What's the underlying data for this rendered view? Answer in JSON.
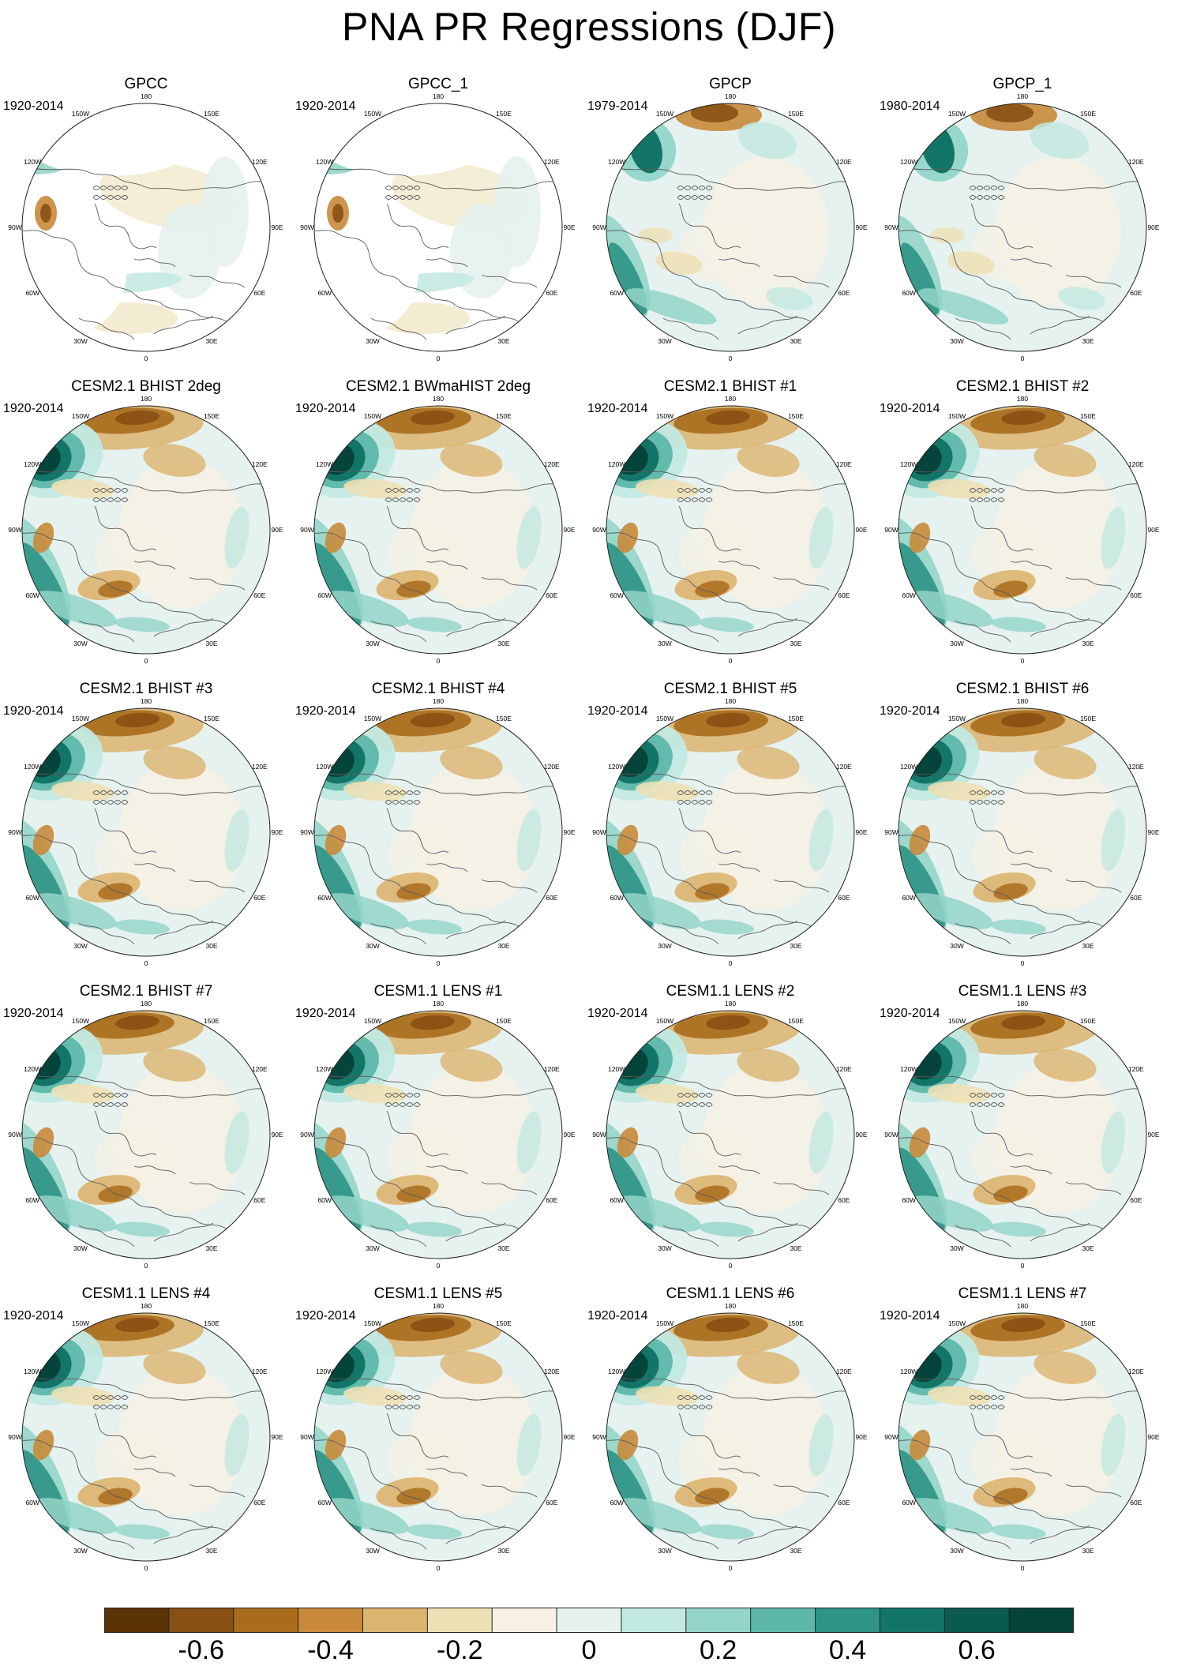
{
  "title": "PNA PR Regressions (DJF)",
  "map_labels": {
    "lon_labels": [
      "180",
      "150E",
      "120E",
      "90E",
      "60E",
      "30E",
      "0",
      "30W",
      "60W",
      "90W",
      "120W",
      "150W"
    ]
  },
  "panels": [
    {
      "title": "GPCC",
      "period": "1920-2014",
      "kind": "gpcc"
    },
    {
      "title": "GPCC_1",
      "period": "1920-2014",
      "kind": "gpcc"
    },
    {
      "title": "GPCP",
      "period": "1979-2014",
      "kind": "gpcp"
    },
    {
      "title": "GPCP_1",
      "period": "1980-2014",
      "kind": "gpcp"
    },
    {
      "title": "CESM2.1 BHIST 2deg",
      "period": "1920-2014",
      "kind": "model"
    },
    {
      "title": "CESM2.1 BWmaHIST 2deg",
      "period": "1920-2014",
      "kind": "model"
    },
    {
      "title": "CESM2.1 BHIST #1",
      "period": "1920-2014",
      "kind": "model"
    },
    {
      "title": "CESM2.1 BHIST #2",
      "period": "1920-2014",
      "kind": "model"
    },
    {
      "title": "CESM2.1 BHIST #3",
      "period": "1920-2014",
      "kind": "model"
    },
    {
      "title": "CESM2.1 BHIST #4",
      "period": "1920-2014",
      "kind": "model"
    },
    {
      "title": "CESM2.1 BHIST #5",
      "period": "1920-2014",
      "kind": "model"
    },
    {
      "title": "CESM2.1 BHIST #6",
      "period": "1920-2014",
      "kind": "model"
    },
    {
      "title": "CESM2.1 BHIST #7",
      "period": "1920-2014",
      "kind": "model"
    },
    {
      "title": "CESM1.1 LENS #1",
      "period": "1920-2014",
      "kind": "model"
    },
    {
      "title": "CESM1.1 LENS #2",
      "period": "1920-2014",
      "kind": "model"
    },
    {
      "title": "CESM1.1 LENS #3",
      "period": "1920-2014",
      "kind": "model"
    },
    {
      "title": "CESM1.1 LENS #4",
      "period": "1920-2014",
      "kind": "model"
    },
    {
      "title": "CESM1.1 LENS #5",
      "period": "1920-2014",
      "kind": "model"
    },
    {
      "title": "CESM1.1 LENS #6",
      "period": "1920-2014",
      "kind": "model"
    },
    {
      "title": "CESM1.1 LENS #7",
      "period": "1920-2014",
      "kind": "model"
    }
  ],
  "colorbar": {
    "colors": [
      "#5a3307",
      "#885014",
      "#a96b1c",
      "#c8893a",
      "#dbb46f",
      "#ede0b4",
      "#f6f1e4",
      "#e6f2ef",
      "#c2e9e1",
      "#93d5c8",
      "#5eb8aa",
      "#2e9485",
      "#137568",
      "#0a5a4e",
      "#04443a"
    ],
    "labels": [
      "-0.6",
      "-0.4",
      "-0.2",
      "0",
      "0.2",
      "0.4",
      "0.6"
    ],
    "label_values": [
      -0.6,
      -0.4,
      -0.2,
      0,
      0.2,
      0.4,
      0.6
    ],
    "range": [
      -0.75,
      0.75
    ]
  }
}
